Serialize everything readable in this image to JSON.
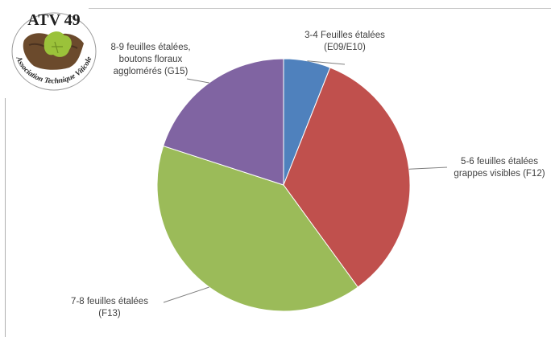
{
  "logo": {
    "title": "ATV 49",
    "subtitle": "Association Technique Viticole"
  },
  "chart_data": {
    "type": "pie",
    "start_angle": "12 o'clock",
    "direction": "clockwise",
    "slices": [
      {
        "label_lines": [
          "3-4 Feuilles étalées",
          "(E09/E10)"
        ],
        "value": 6,
        "color": "#4F81BD"
      },
      {
        "label_lines": [
          "5-6 feuilles étalées",
          "grappes visibles (F12)"
        ],
        "value": 34,
        "color": "#C0504D"
      },
      {
        "label_lines": [
          "7-8 feuilles étalées",
          "(F13)"
        ],
        "value": 40,
        "color": "#9BBB59"
      },
      {
        "label_lines": [
          "8-9 feuilles étalées,",
          "boutons floraux",
          "agglomérés (G15)"
        ],
        "value": 20,
        "color": "#8064A2"
      }
    ]
  }
}
